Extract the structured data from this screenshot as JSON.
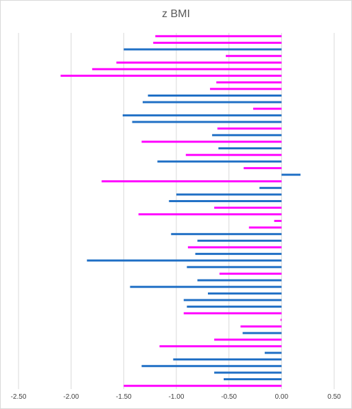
{
  "chart_data": {
    "type": "bar",
    "orientation": "horizontal",
    "title": "z BMI",
    "xlabel": "",
    "ylabel": "",
    "xlim": [
      -2.5,
      0.5
    ],
    "xticks": [
      -2.5,
      -2.0,
      -1.5,
      -1.0,
      -0.5,
      0.0,
      0.5
    ],
    "xtick_labels": [
      "-2.50",
      "-2.00",
      "-1.50",
      "-1.00",
      "-0.50",
      "0.00",
      "0.50"
    ],
    "grid": "vertical",
    "legend": "none",
    "colors": {
      "magenta": "#ff00ff",
      "blue": "#1f6fc5"
    },
    "bars": [
      {
        "v": -1.2,
        "c": "magenta"
      },
      {
        "v": -1.22,
        "c": "magenta"
      },
      {
        "v": -1.5,
        "c": "blue"
      },
      {
        "v": -0.53,
        "c": "magenta"
      },
      {
        "v": -1.57,
        "c": "magenta"
      },
      {
        "v": -1.8,
        "c": "magenta"
      },
      {
        "v": -2.1,
        "c": "magenta"
      },
      {
        "v": -0.62,
        "c": "magenta"
      },
      {
        "v": -0.68,
        "c": "magenta"
      },
      {
        "v": -1.27,
        "c": "blue"
      },
      {
        "v": -1.32,
        "c": "blue"
      },
      {
        "v": -0.27,
        "c": "magenta"
      },
      {
        "v": -1.51,
        "c": "blue"
      },
      {
        "v": -1.42,
        "c": "blue"
      },
      {
        "v": -0.61,
        "c": "magenta"
      },
      {
        "v": -0.66,
        "c": "blue"
      },
      {
        "v": -1.33,
        "c": "magenta"
      },
      {
        "v": -0.6,
        "c": "blue"
      },
      {
        "v": -0.91,
        "c": "magenta"
      },
      {
        "v": -1.18,
        "c": "blue"
      },
      {
        "v": -0.36,
        "c": "magenta"
      },
      {
        "v": 0.18,
        "c": "blue"
      },
      {
        "v": -1.71,
        "c": "magenta"
      },
      {
        "v": -0.21,
        "c": "blue"
      },
      {
        "v": -1.0,
        "c": "blue"
      },
      {
        "v": -1.07,
        "c": "blue"
      },
      {
        "v": -0.64,
        "c": "magenta"
      },
      {
        "v": -1.36,
        "c": "magenta"
      },
      {
        "v": -0.07,
        "c": "magenta"
      },
      {
        "v": -0.31,
        "c": "magenta"
      },
      {
        "v": -1.05,
        "c": "blue"
      },
      {
        "v": -0.8,
        "c": "blue"
      },
      {
        "v": -0.89,
        "c": "magenta"
      },
      {
        "v": -0.82,
        "c": "blue"
      },
      {
        "v": -1.85,
        "c": "blue"
      },
      {
        "v": -0.9,
        "c": "blue"
      },
      {
        "v": -0.59,
        "c": "magenta"
      },
      {
        "v": -0.8,
        "c": "blue"
      },
      {
        "v": -1.44,
        "c": "blue"
      },
      {
        "v": -0.7,
        "c": "blue"
      },
      {
        "v": -0.93,
        "c": "blue"
      },
      {
        "v": -0.9,
        "c": "blue"
      },
      {
        "v": -0.93,
        "c": "magenta"
      },
      {
        "v": -0.01,
        "c": "magenta"
      },
      {
        "v": -0.39,
        "c": "magenta"
      },
      {
        "v": -0.37,
        "c": "blue"
      },
      {
        "v": -0.64,
        "c": "magenta"
      },
      {
        "v": -1.16,
        "c": "magenta"
      },
      {
        "v": -0.16,
        "c": "blue"
      },
      {
        "v": -1.03,
        "c": "blue"
      },
      {
        "v": -1.33,
        "c": "blue"
      },
      {
        "v": -0.64,
        "c": "blue"
      },
      {
        "v": -0.55,
        "c": "blue"
      },
      {
        "v": -1.5,
        "c": "magenta"
      }
    ]
  }
}
